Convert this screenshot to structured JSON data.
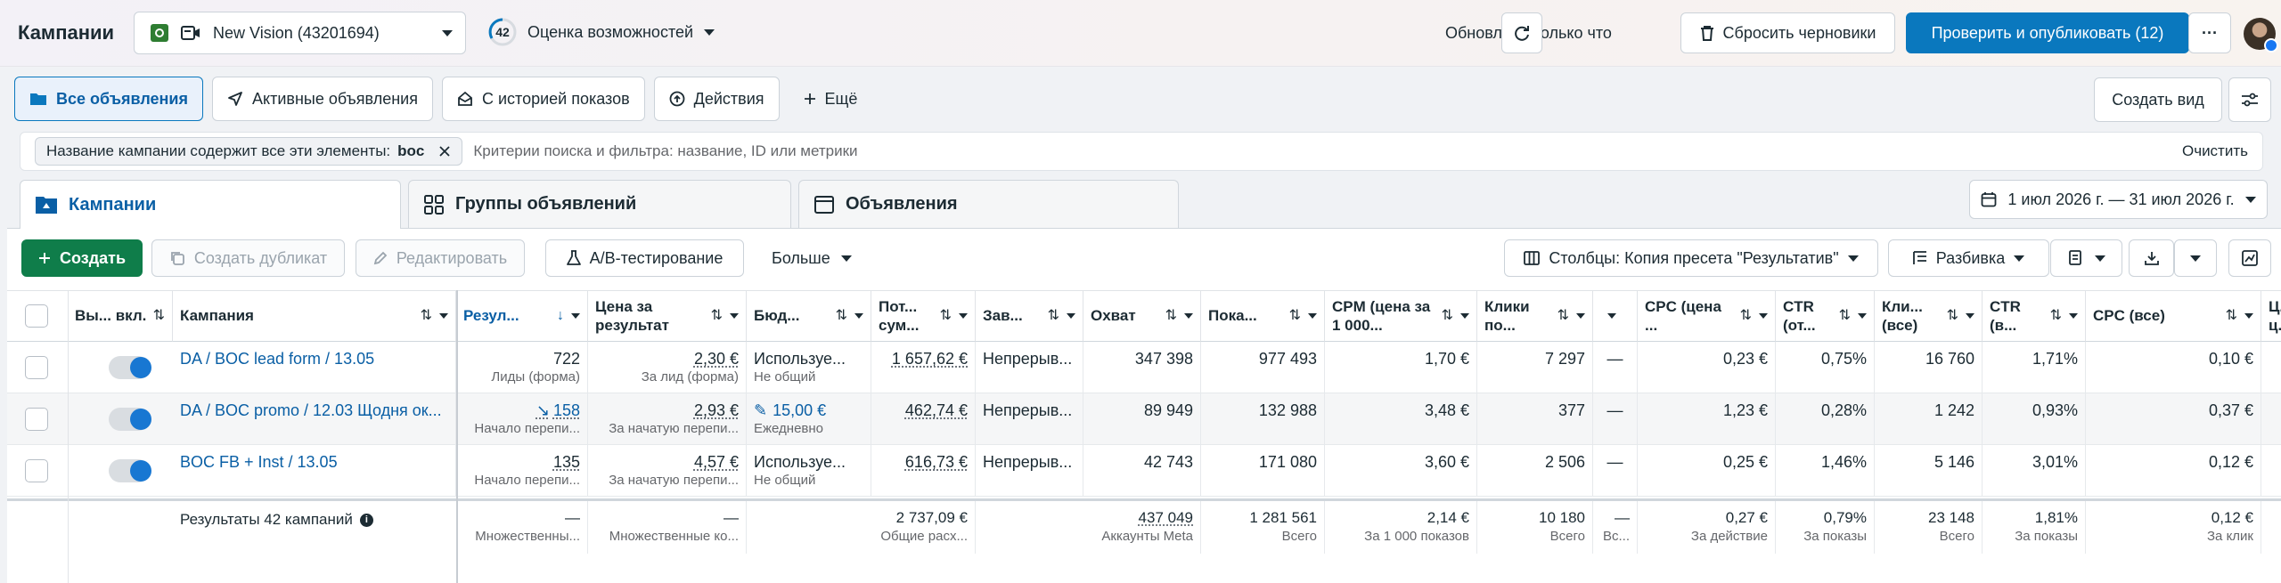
{
  "app_title": "Кампании",
  "account": {
    "name": "New Vision (43201694)"
  },
  "opportunity": {
    "score": "42",
    "label": "Оценка возможностей"
  },
  "status_text": "Обновлено только что",
  "buttons": {
    "discard": "Сбросить черновики",
    "publish": "Проверить и опубликовать (12)",
    "more_dots": "···",
    "create_view": "Создать вид",
    "clear": "Очистить",
    "create": "Создать",
    "duplicate": "Создать дубликат",
    "edit": "Редактировать",
    "ab_test": "A/B-тестирование",
    "more": "Больше",
    "columns": "Столбцы: Копия пресета \"Результатив\"",
    "breakdown": "Разбивка"
  },
  "nav_tabs": [
    "Все объявления",
    "Активные объявления",
    "С историей показов",
    "Действия",
    "Ещё"
  ],
  "filter": {
    "chip_label": "Название кампании содержит все эти элементы:",
    "chip_value": "boc",
    "placeholder": "Критерии поиска и фильтра: название, ID или метрики"
  },
  "level_tabs": [
    "Кампании",
    "Группы объявлений",
    "Объявления"
  ],
  "date_range": "1 июл 2026 г. — 31 июл 2026 г.",
  "columns": [
    "Вы... вкл.",
    "Кампания",
    "Резул...",
    "Цена за результат",
    "Бюд...",
    "Пот... сум...",
    "Зав...",
    "Охват",
    "Пока...",
    "CPM (цена за 1 000...",
    "Клики по...",
    "",
    "CPC (цена ...",
    "CTR (от...",
    "Кли... (все)",
    "CTR (в...",
    "CPC (все)",
    "Ц... ц..."
  ],
  "rows": [
    {
      "name": "DA / BOC lead form / 13.05",
      "result": "722",
      "result_sub": "Лиды (форма)",
      "cpr": "2,30 €",
      "cpr_sub": "За лид (форма)",
      "budget": "Используе...",
      "budget_sub": "Не общий",
      "spent": "1 657,62 €",
      "end": "Непрерыв...",
      "reach": "347 398",
      "impr": "977 493",
      "cpm": "1,70 €",
      "clicks": "7 297",
      "dash": "—",
      "cpc": "0,23 €",
      "ctr": "0,75%",
      "clicks_all": "16 760",
      "ctr_all": "1,71%",
      "cpc_all": "0,10 €"
    },
    {
      "name": "DA / BOC promo / 12.03 Щодня ок...",
      "result": "158",
      "result_sub": "Начало перепи...",
      "cpr": "2,93 €",
      "cpr_sub": "За начатую перепи...",
      "budget": "15,00 €",
      "budget_sub": "Ежедневно",
      "spent": "462,74 €",
      "end": "Непрерыв...",
      "reach": "89 949",
      "impr": "132 988",
      "cpm": "3,48 €",
      "clicks": "377",
      "dash": "—",
      "cpc": "1,23 €",
      "ctr": "0,28%",
      "clicks_all": "1 242",
      "ctr_all": "0,93%",
      "cpc_all": "0,37 €"
    },
    {
      "name": "BOC FB + Inst / 13.05",
      "result": "135",
      "result_sub": "Начало перепи...",
      "cpr": "4,57 €",
      "cpr_sub": "За начатую перепи...",
      "budget": "Используе...",
      "budget_sub": "Не общий",
      "spent": "616,73 €",
      "end": "Непрерыв...",
      "reach": "42 743",
      "impr": "171 080",
      "cpm": "3,60 €",
      "clicks": "2 506",
      "dash": "—",
      "cpc": "0,25 €",
      "ctr": "1,46%",
      "clicks_all": "5 146",
      "ctr_all": "3,01%",
      "cpc_all": "0,12 €"
    }
  ],
  "totals": {
    "label": "Результаты 42 кампаний",
    "result": "—",
    "result_sub": "Множественны...",
    "cpr": "—",
    "cpr_sub": "Множественные ко...",
    "spent": "2 737,09 €",
    "spent_sub": "Общие расх...",
    "reach": "437 049",
    "reach_sub": "Аккаунты Meta",
    "impr": "1 281 561",
    "impr_sub": "Всего",
    "cpm": "2,14 €",
    "cpm_sub": "За 1 000 показов",
    "clicks": "10 180",
    "clicks_sub": "Всего",
    "dash": "—",
    "dash_sub": "Вс...",
    "cpc": "0,27 €",
    "cpc_sub": "За действие",
    "ctr": "0,79%",
    "ctr_sub": "За показы",
    "clicks_all": "23 148",
    "clicks_all_sub": "Всего",
    "ctr_all": "1,81%",
    "ctr_all_sub": "За показы",
    "cpc_all": "0,12 €",
    "cpc_all_sub": "За клик"
  }
}
